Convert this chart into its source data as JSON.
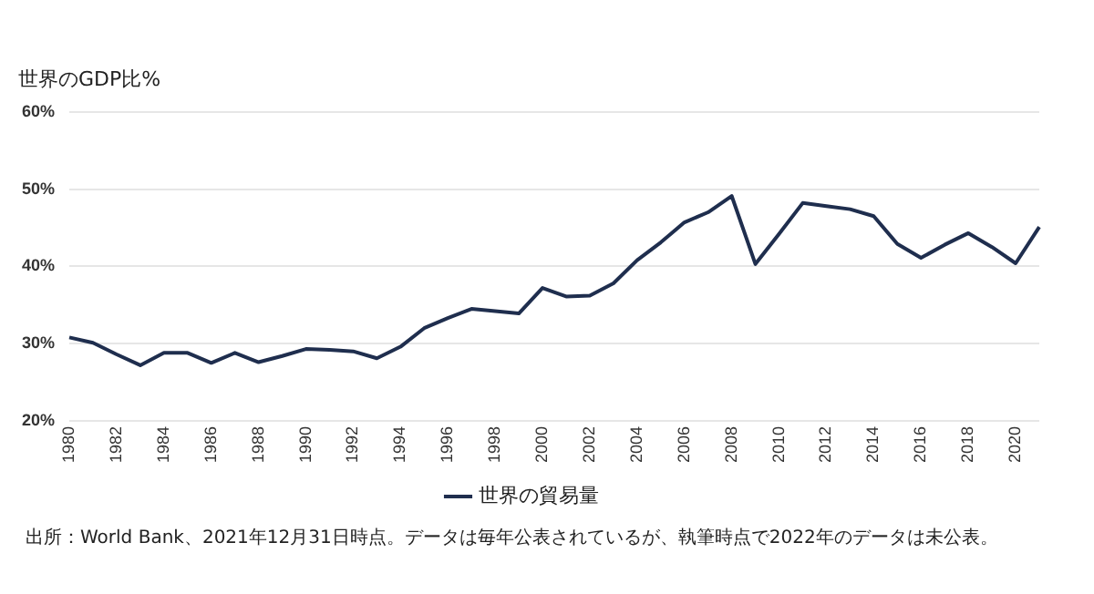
{
  "chart_data": {
    "type": "line",
    "ylabel": "世界のGDP比%",
    "categories": [
      "1980",
      null,
      "1982",
      null,
      "1984",
      null,
      "1986",
      null,
      "1988",
      null,
      "1990",
      null,
      "1992",
      null,
      "1994",
      null,
      "1996",
      null,
      "1998",
      null,
      "2000",
      null,
      "2002",
      null,
      "2004",
      null,
      "2006",
      null,
      "2008",
      null,
      "2010",
      null,
      "2012",
      null,
      "2014",
      null,
      "2016",
      null,
      "2018",
      null,
      "2020",
      null
    ],
    "series": [
      {
        "name": "世界の貿易量",
        "color": "#1f2e4e",
        "values": [
          30.8,
          30.1,
          28.6,
          27.2,
          28.8,
          28.8,
          27.5,
          28.8,
          27.6,
          28.4,
          29.3,
          29.2,
          29.0,
          28.1,
          29.6,
          32.0,
          33.3,
          34.5,
          34.2,
          33.9,
          37.2,
          36.1,
          36.2,
          37.8,
          40.8,
          43.1,
          45.7,
          47.0,
          49.1,
          40.3,
          44.2,
          48.2,
          47.8,
          47.4,
          46.5,
          42.9,
          41.1,
          42.8,
          44.3,
          42.5,
          40.4,
          45.1
        ]
      }
    ],
    "ylim": [
      20,
      60
    ],
    "yticks": [
      {
        "value": 20,
        "label": "20%"
      },
      {
        "value": 30,
        "label": "30%"
      },
      {
        "value": 40,
        "label": "40%"
      },
      {
        "value": 50,
        "label": "50%"
      },
      {
        "value": 60,
        "label": "60%"
      }
    ],
    "grid": "y",
    "legend": "bottom",
    "marker": "none",
    "line_style": "solid",
    "annotations": [
      "出所：World Bank、2021年12月31日時点。データは毎年公表されているが、執筆時点で2022年のデータは未公表。"
    ]
  }
}
